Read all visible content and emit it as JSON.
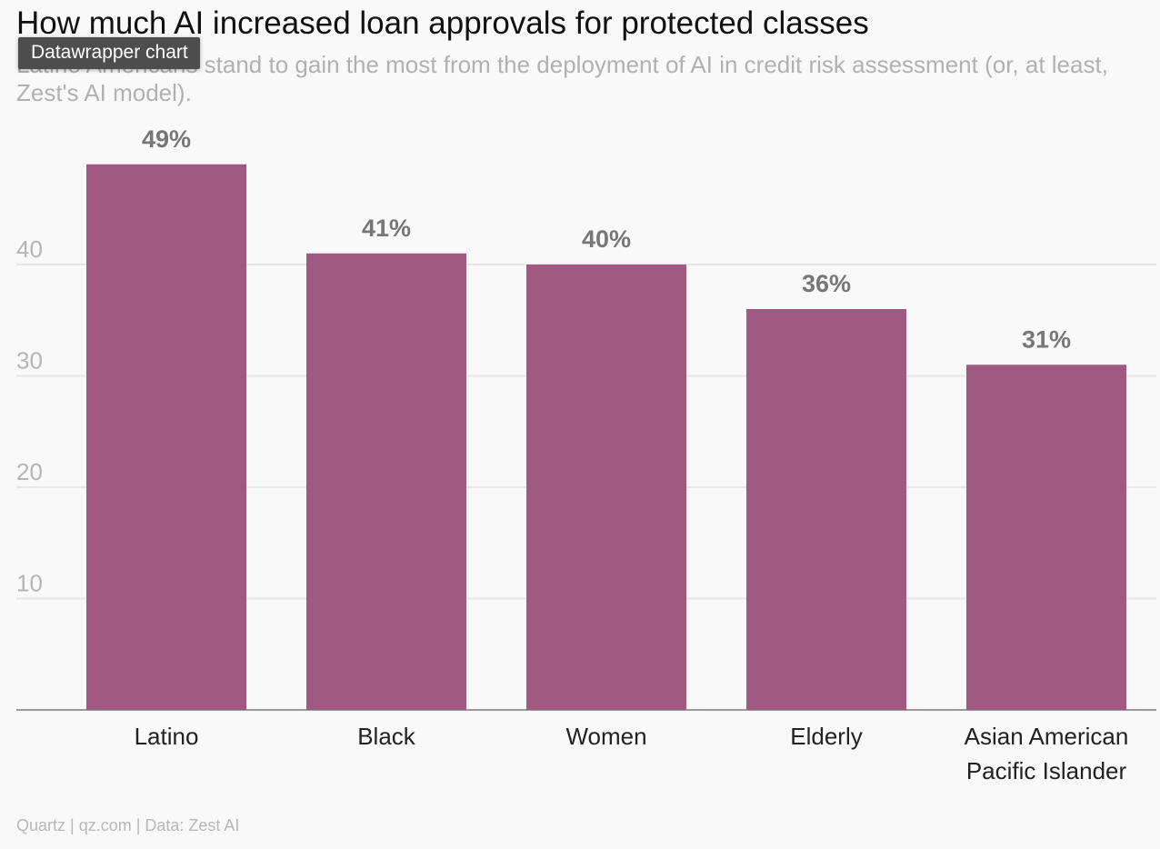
{
  "chart_data": {
    "type": "bar",
    "title": "How much AI increased loan approvals for protected classes",
    "subtitle": "Latino Americans stand to gain the most from the deployment of AI in credit risk assessment (or, at least, Zest's AI model).",
    "categories": [
      "Latino",
      "Black",
      "Women",
      "Elderly",
      "Asian American Pacific Islander"
    ],
    "category_lines": [
      [
        "Latino"
      ],
      [
        "Black"
      ],
      [
        "Women"
      ],
      [
        "Elderly"
      ],
      [
        "Asian American",
        "Pacific Islander"
      ]
    ],
    "values": [
      49,
      41,
      40,
      36,
      31
    ],
    "value_labels": [
      "49%",
      "41%",
      "40%",
      "36%",
      "31%"
    ],
    "y_ticks": [
      10,
      20,
      30,
      40
    ],
    "ylim": [
      0,
      53
    ],
    "xlabel": "",
    "ylabel": "",
    "grid": true,
    "bar_color": "#a05a82",
    "source": "Quartz | qz.com | Data: Zest AI"
  },
  "tooltip": {
    "label": "Datawrapper chart"
  }
}
